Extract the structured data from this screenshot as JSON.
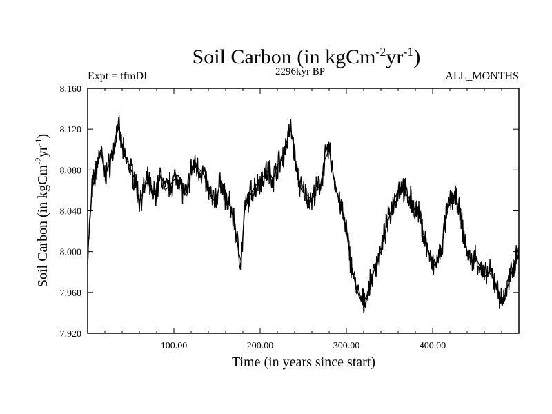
{
  "chart_data": {
    "type": "line",
    "title_main": "Soil Carbon (in kgCm",
    "title_sup1": "-2",
    "title_mid": "yr",
    "title_sup2": "-1",
    "title_end": ")",
    "subtitle_left": "Expt = tfmDI",
    "subtitle_center": "2296kyr BP",
    "subtitle_right": "ALL_MONTHS",
    "xlabel": "Time (in years since start)",
    "ylabel_main": "Soil Carbon (in kgCm",
    "ylabel_sup1": "-2",
    "ylabel_mid": "yr",
    "ylabel_sup2": "-1",
    "ylabel_end": ")",
    "xlim": [
      0,
      500
    ],
    "ylim": [
      7.92,
      8.16
    ],
    "xticks": [
      100,
      200,
      300,
      400
    ],
    "xtick_labels": [
      "100.00",
      "200.00",
      "300.00",
      "400.00"
    ],
    "yticks": [
      7.92,
      7.96,
      8.0,
      8.04,
      8.08,
      8.12,
      8.16
    ],
    "ytick_labels": [
      "7.920",
      "7.960",
      "8.000",
      "8.040",
      "8.080",
      "8.120",
      "8.160"
    ],
    "series_color": "#000000",
    "series": [
      {
        "name": "soil carbon",
        "x": [
          0,
          5,
          10,
          15,
          20,
          25,
          30,
          35,
          38,
          42,
          48,
          55,
          60,
          65,
          70,
          75,
          80,
          85,
          90,
          95,
          100,
          105,
          110,
          115,
          120,
          125,
          130,
          135,
          140,
          145,
          150,
          155,
          160,
          165,
          170,
          175,
          178,
          182,
          188,
          195,
          200,
          205,
          210,
          215,
          220,
          225,
          230,
          235,
          238,
          242,
          248,
          255,
          260,
          265,
          270,
          275,
          280,
          285,
          290,
          295,
          300,
          305,
          310,
          315,
          320,
          325,
          330,
          335,
          340,
          345,
          350,
          355,
          360,
          365,
          370,
          375,
          380,
          385,
          390,
          395,
          400,
          405,
          410,
          415,
          420,
          425,
          430,
          435,
          440,
          445,
          450,
          455,
          460,
          465,
          470,
          475,
          480,
          485,
          490,
          495,
          500
        ],
        "y": [
          7.995,
          8.06,
          8.08,
          8.1,
          8.075,
          8.085,
          8.1,
          8.125,
          8.11,
          8.095,
          8.085,
          8.07,
          8.05,
          8.06,
          8.07,
          8.055,
          8.06,
          8.075,
          8.06,
          8.065,
          8.07,
          8.075,
          8.06,
          8.055,
          8.08,
          8.085,
          8.08,
          8.075,
          8.06,
          8.05,
          8.055,
          8.07,
          8.05,
          8.045,
          8.03,
          8.0,
          7.99,
          8.04,
          8.055,
          8.065,
          8.07,
          8.075,
          8.08,
          8.07,
          8.085,
          8.09,
          8.105,
          8.12,
          8.11,
          8.08,
          8.06,
          8.055,
          8.05,
          8.06,
          8.065,
          8.09,
          8.1,
          8.075,
          8.055,
          8.04,
          8.02,
          7.99,
          7.97,
          7.955,
          7.95,
          7.96,
          7.975,
          7.99,
          8.0,
          8.02,
          8.035,
          8.05,
          8.06,
          8.065,
          8.055,
          8.05,
          8.04,
          8.035,
          8.015,
          8.0,
          7.985,
          7.99,
          8.0,
          8.03,
          8.05,
          8.055,
          8.045,
          8.02,
          8.0,
          7.99,
          7.995,
          7.985,
          7.975,
          7.98,
          7.975,
          7.965,
          7.95,
          7.96,
          7.975,
          7.99,
          8.005
        ]
      }
    ]
  }
}
